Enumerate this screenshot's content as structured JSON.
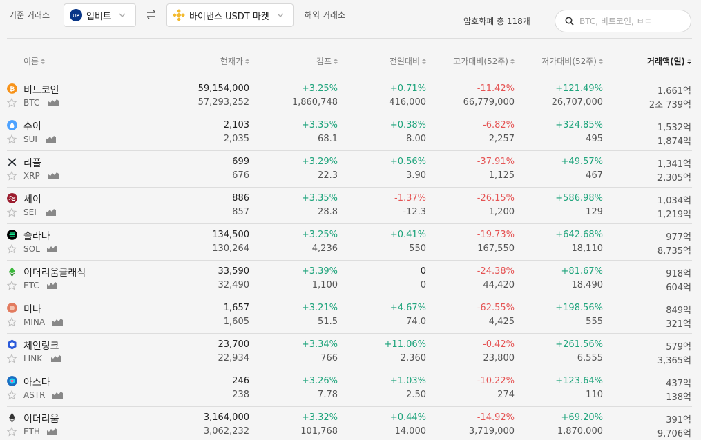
{
  "topbar": {
    "base_exchange_label": "기준 거래소",
    "base_exchange": "업비트",
    "base_exchange_logo_text": "UP",
    "foreign_exchange": "바이낸스 USDT 마켓",
    "foreign_exchange_label": "해외 거래소",
    "crypto_count": "암호화폐 총 118개",
    "search_placeholder": "BTC, 비트코인, ㅂㅌ"
  },
  "columns": {
    "name": "이름",
    "price": "현재가",
    "kimp": "김프",
    "change": "전일대비",
    "from_high": "고가대비(52주)",
    "from_low": "저가대비(52주)",
    "volume": "거래액(일)"
  },
  "colors": {
    "positive": "#1fa47c",
    "negative": "#e55454",
    "upbit": "#093687",
    "binance": "#f3ba2f"
  },
  "rows": [
    {
      "name": "비트코인",
      "symbol": "BTC",
      "icon": "bitcoin-icon",
      "icon_color": "#f7931a",
      "price": "59,154,000",
      "price_foreign": "57,293,252",
      "kimp": "+3.25%",
      "kimp_sub": "1,860,748",
      "change": "+0.71%",
      "change_sub": "416,000",
      "high": "-11.42%",
      "high_sub": "66,779,000",
      "low": "+121.49%",
      "low_sub": "26,707,000",
      "volume": "1,661억",
      "volume_foreign": "2조 739억"
    },
    {
      "name": "수이",
      "symbol": "SUI",
      "icon": "sui-icon",
      "icon_color": "#4da2ff",
      "price": "2,103",
      "price_foreign": "2,035",
      "kimp": "+3.35%",
      "kimp_sub": "68.1",
      "change": "+0.38%",
      "change_sub": "8.00",
      "high": "-6.82%",
      "high_sub": "2,257",
      "low": "+324.85%",
      "low_sub": "495",
      "volume": "1,532억",
      "volume_foreign": "1,874억"
    },
    {
      "name": "리플",
      "symbol": "XRP",
      "icon": "ripple-icon",
      "icon_color": "#23292f",
      "price": "699",
      "price_foreign": "676",
      "kimp": "+3.29%",
      "kimp_sub": "22.3",
      "change": "+0.56%",
      "change_sub": "3.90",
      "high": "-37.91%",
      "high_sub": "1,125",
      "low": "+49.57%",
      "low_sub": "467",
      "volume": "1,341억",
      "volume_foreign": "2,305억"
    },
    {
      "name": "세이",
      "symbol": "SEI",
      "icon": "sei-icon",
      "icon_color": "#9b1c2e",
      "price": "886",
      "price_foreign": "857",
      "kimp": "+3.35%",
      "kimp_sub": "28.8",
      "change": "-1.37%",
      "change_sub": "-12.3",
      "high": "-26.15%",
      "high_sub": "1,200",
      "low": "+586.98%",
      "low_sub": "129",
      "volume": "1,034억",
      "volume_foreign": "1,219억"
    },
    {
      "name": "솔라나",
      "symbol": "SOL",
      "icon": "solana-icon",
      "icon_color": "#000000",
      "price": "134,500",
      "price_foreign": "130,264",
      "kimp": "+3.25%",
      "kimp_sub": "4,236",
      "change": "+0.41%",
      "change_sub": "550",
      "high": "-19.73%",
      "high_sub": "167,550",
      "low": "+642.68%",
      "low_sub": "18,110",
      "volume": "977억",
      "volume_foreign": "8,735억"
    },
    {
      "name": "이더리움클래식",
      "symbol": "ETC",
      "icon": "ethereum-classic-icon",
      "icon_color": "#3ab83a",
      "price": "33,590",
      "price_foreign": "32,490",
      "kimp": "+3.39%",
      "kimp_sub": "1,100",
      "change": "0",
      "change_sub": "0",
      "high": "-24.38%",
      "high_sub": "44,420",
      "low": "+81.67%",
      "low_sub": "18,490",
      "volume": "918억",
      "volume_foreign": "604억"
    },
    {
      "name": "미나",
      "symbol": "MINA",
      "icon": "mina-icon",
      "icon_color": "#e27b5f",
      "price": "1,657",
      "price_foreign": "1,605",
      "kimp": "+3.21%",
      "kimp_sub": "51.5",
      "change": "+4.67%",
      "change_sub": "74.0",
      "high": "-62.55%",
      "high_sub": "4,425",
      "low": "+198.56%",
      "low_sub": "555",
      "volume": "849억",
      "volume_foreign": "321억"
    },
    {
      "name": "체인링크",
      "symbol": "LINK",
      "icon": "chainlink-icon",
      "icon_color": "#2a5ada",
      "price": "23,700",
      "price_foreign": "22,934",
      "kimp": "+3.34%",
      "kimp_sub": "766",
      "change": "+11.06%",
      "change_sub": "2,360",
      "high": "-0.42%",
      "high_sub": "23,800",
      "low": "+261.56%",
      "low_sub": "6,555",
      "volume": "579억",
      "volume_foreign": "3,365억"
    },
    {
      "name": "아스타",
      "symbol": "ASTR",
      "icon": "astar-icon",
      "icon_color": "#0ae2ff",
      "price": "246",
      "price_foreign": "238",
      "kimp": "+3.26%",
      "kimp_sub": "7.78",
      "change": "+1.03%",
      "change_sub": "2.50",
      "high": "-10.22%",
      "high_sub": "274",
      "low": "+123.64%",
      "low_sub": "110",
      "volume": "437억",
      "volume_foreign": "138억"
    },
    {
      "name": "이더리움",
      "symbol": "ETH",
      "icon": "ethereum-icon",
      "icon_color": "#343434",
      "price": "3,164,000",
      "price_foreign": "3,062,232",
      "kimp": "+3.32%",
      "kimp_sub": "101,768",
      "change": "+0.44%",
      "change_sub": "14,000",
      "high": "-14.92%",
      "high_sub": "3,719,000",
      "low": "+69.20%",
      "low_sub": "1,870,000",
      "volume": "391억",
      "volume_foreign": "9,706억"
    }
  ]
}
